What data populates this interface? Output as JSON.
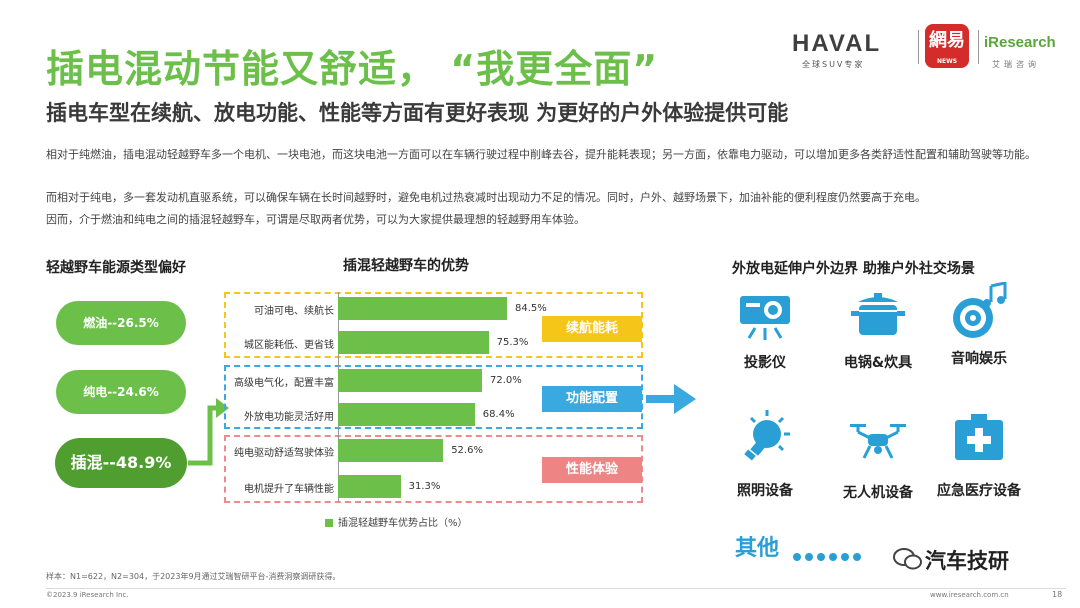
{
  "title": "插电混动节能又舒适，  “我更全面”",
  "subtitle": "插电车型在续航、放电功能、性能等方面有更好表现 为更好的户外体验提供可能",
  "paragraphs": [
    "相对于纯燃油，插电混动轻越野车多一个电机、一块电池，而这块电池一方面可以在车辆行驶过程中削峰去谷，提升能耗表现；另一方面，依靠电力驱动，可以增加更多各类舒适性配置和辅助驾驶等功能。",
    "而相对于纯电，多一套发动机直驱系统，可以确保车辆在长时间越野时，避免电机过热衰减时出现动力不足的情况。同时，户外、越野场景下，加油补能的便利程度仍然要高于充电。",
    "因而，介于燃油和纯电之间的插混轻越野车，可谓是尽取两者优势，可以为大家提供最理想的轻越野用车体验。"
  ],
  "logos": {
    "haval": "HAVAL",
    "haval_sub": "全球SUV专家",
    "netease": "網易",
    "netease_sub": "NEWS",
    "iresearch": "iResearch",
    "iresearch_sub": "艾瑞咨询"
  },
  "energy_preference": {
    "heading": "轻越野车能源类型偏好",
    "items": [
      {
        "label": "燃油--26.5%",
        "color": "#6cc04a"
      },
      {
        "label": "纯电--24.6%",
        "color": "#6cc04a"
      },
      {
        "label": "插混--48.9%",
        "color": "#4f9e2f"
      }
    ]
  },
  "chart_data": {
    "type": "bar",
    "title": "插混轻越野车的优势",
    "categories": [
      "可油可电、续航长",
      "城区能耗低、更省钱",
      "高级电气化，配置丰富",
      "外放电功能灵活好用",
      "纯电驱动舒适驾驶体验",
      "电机提升了车辆性能"
    ],
    "series": [
      {
        "name": "插混轻越野车优势占比（%）",
        "values": [
          84.5,
          75.3,
          72.0,
          68.4,
          52.6,
          31.3
        ]
      }
    ],
    "value_labels": [
      "84.5%",
      "75.3%",
      "72.0%",
      "68.4%",
      "52.6%",
      "31.3%"
    ],
    "groups": [
      {
        "label": "续航能耗",
        "items": [
          0,
          1
        ],
        "border": "#f5c518",
        "tag": "#f5c518"
      },
      {
        "label": "功能配置",
        "items": [
          2,
          3
        ],
        "border": "#39a9e0",
        "tag": "#39a9e0"
      },
      {
        "label": "性能体验",
        "items": [
          4,
          5
        ],
        "border": "#f08a8a",
        "tag": "#ee8585"
      }
    ],
    "legend_label": "插混轻越野车优势占比（%）",
    "xlim": [
      0,
      100
    ],
    "grid": false,
    "orientation": "horizontal"
  },
  "features": {
    "heading": "外放电延伸户外边界 助推户外社交场景",
    "items": [
      {
        "label": "投影仪",
        "icon": "projector-icon"
      },
      {
        "label": "电锅&炊具",
        "icon": "cooking-pot-icon"
      },
      {
        "label": "音响娱乐",
        "icon": "speaker-music-icon"
      },
      {
        "label": "照明设备",
        "icon": "lightbulb-icon"
      },
      {
        "label": "无人机设备",
        "icon": "drone-icon"
      },
      {
        "label": "应急医疗设备",
        "icon": "medical-kit-icon"
      }
    ],
    "others": "其他",
    "icon_color": "#2a9fd6"
  },
  "footer": {
    "source": "样本：N1=622，N2=304，于2023年9月通过艾瑞智研平台-消费洞察调研获得。",
    "copyright": "©2023.9 iResearch Inc.",
    "site": "www.iresearch.com.cn",
    "page": "18",
    "wechat": "汽车技研"
  }
}
